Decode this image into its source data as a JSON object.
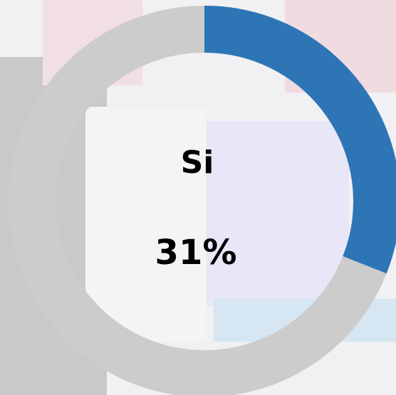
{
  "chart_data": {
    "type": "donut",
    "categories": [
      "Si"
    ],
    "values": [
      31
    ],
    "value_labels": [
      "31%"
    ],
    "color": "#2e75b6",
    "track_color": "#cccccc",
    "ylim": [
      0,
      100
    ]
  }
}
